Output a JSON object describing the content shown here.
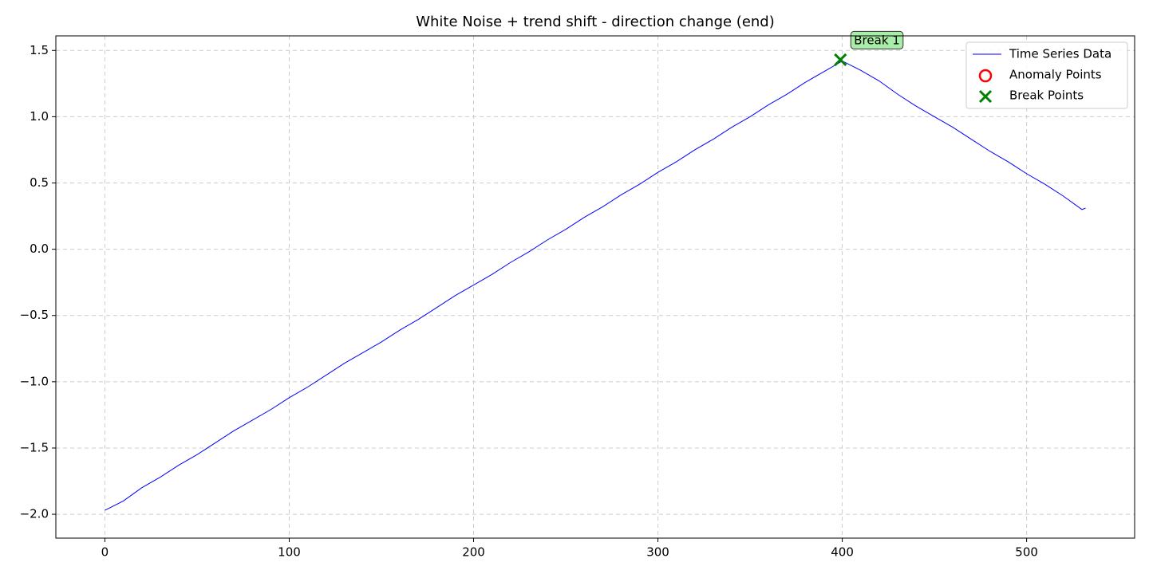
{
  "chart_data": {
    "type": "line",
    "title": "White Noise + trend shift - direction change (end)",
    "x": [
      0,
      10,
      20,
      30,
      40,
      50,
      60,
      70,
      80,
      90,
      100,
      110,
      120,
      130,
      140,
      150,
      160,
      170,
      180,
      190,
      200,
      210,
      220,
      230,
      240,
      250,
      260,
      270,
      280,
      290,
      300,
      310,
      320,
      330,
      340,
      350,
      360,
      370,
      380,
      390,
      400,
      410,
      420,
      430,
      440,
      450,
      460,
      470,
      480,
      490,
      500,
      510,
      520,
      530,
      532
    ],
    "series": [
      {
        "name": "Time Series Data",
        "color": "#0000ff",
        "values": [
          -1.97,
          -1.9,
          -1.8,
          -1.72,
          -1.63,
          -1.55,
          -1.46,
          -1.37,
          -1.29,
          -1.21,
          -1.12,
          -1.04,
          -0.95,
          -0.86,
          -0.78,
          -0.7,
          -0.61,
          -0.53,
          -0.44,
          -0.35,
          -0.27,
          -0.19,
          -0.1,
          -0.02,
          0.07,
          0.15,
          0.24,
          0.32,
          0.41,
          0.49,
          0.58,
          0.66,
          0.75,
          0.83,
          0.92,
          1.0,
          1.09,
          1.17,
          1.26,
          1.34,
          1.42,
          1.35,
          1.27,
          1.17,
          1.08,
          1.0,
          0.92,
          0.83,
          0.74,
          0.66,
          0.57,
          0.49,
          0.4,
          0.3,
          0.31
        ]
      }
    ],
    "anomalies": {
      "name": "Anomaly Points",
      "color": "#ff0000",
      "x": [],
      "values": []
    },
    "breaks": {
      "name": "Break Points",
      "color": "#008000",
      "x": [
        399
      ],
      "values": [
        1.43
      ],
      "labels": [
        "Break 1"
      ]
    },
    "xlim": [
      -26.6,
      558.6
    ],
    "ylim": [
      -2.18,
      1.61
    ],
    "xticks": [
      0,
      100,
      200,
      300,
      400,
      500
    ],
    "yticks": [
      {
        "value": -2.0,
        "label": "−2.0"
      },
      {
        "value": -1.5,
        "label": "−1.5"
      },
      {
        "value": -1.0,
        "label": "−1.0"
      },
      {
        "value": -0.5,
        "label": "−0.5"
      },
      {
        "value": 0.0,
        "label": "0.0"
      },
      {
        "value": 0.5,
        "label": "0.5"
      },
      {
        "value": 1.0,
        "label": "1.0"
      },
      {
        "value": 1.5,
        "label": "1.5"
      }
    ],
    "grid": true,
    "legend": "upper right"
  }
}
